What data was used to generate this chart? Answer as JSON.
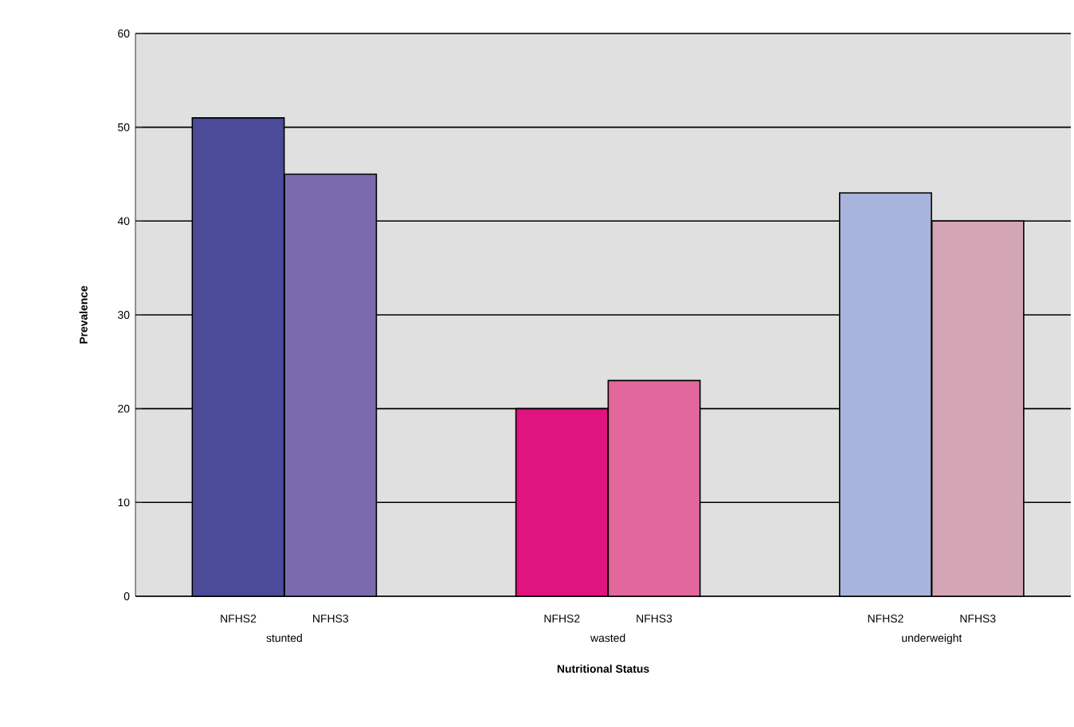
{
  "chart_data": {
    "type": "bar",
    "xlabel": "Nutritional Status",
    "ylabel": "Prevalence",
    "categories": [
      "stunted",
      "wasted",
      "underweight"
    ],
    "series": [
      {
        "name": "NFHS2",
        "colors": [
          "#4b4b9a",
          "#e0147f",
          "#a9b4dc"
        ],
        "values": [
          51,
          20,
          43
        ]
      },
      {
        "name": "NFHS3",
        "colors": [
          "#7b6aad",
          "#e2679d",
          "#d4a5b5"
        ],
        "values": [
          45,
          23,
          40
        ]
      }
    ],
    "ylim": [
      0,
      60
    ],
    "yticks": [
      0,
      10,
      20,
      30,
      40,
      50,
      60
    ],
    "grid": "y"
  }
}
